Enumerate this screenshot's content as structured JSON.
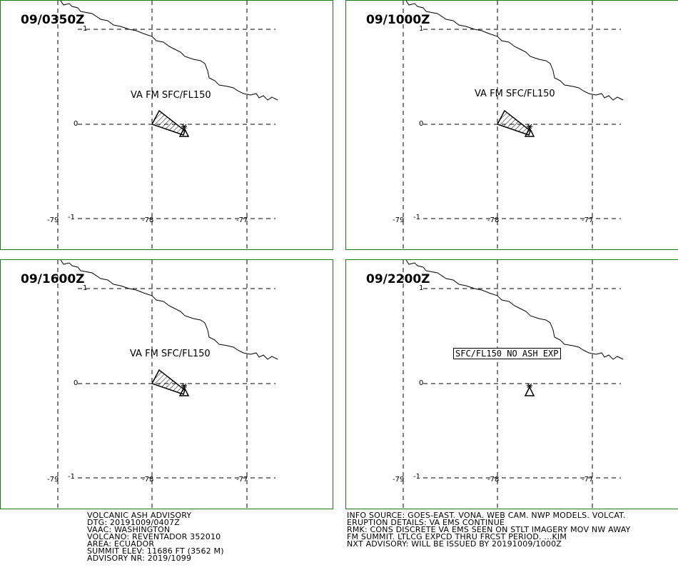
{
  "panels": [
    {
      "time": "09/0350Z",
      "label": "VA FM SFC/FL150",
      "ash": true
    },
    {
      "time": "09/1000Z",
      "label": "VA FM SFC/FL150",
      "ash": true
    },
    {
      "time": "09/1600Z",
      "label": "VA FM SFC/FL150",
      "ash": true
    },
    {
      "time": "09/2200Z",
      "label": "SFC/FL150 NO ASH EXP",
      "ash": false
    }
  ],
  "axes": {
    "lon_labels": [
      "-79",
      "-78",
      "-77"
    ],
    "lat_labels": [
      "1",
      "0",
      "-1"
    ]
  },
  "advisory": {
    "lines": [
      "VOLCANIC ASH ADVISORY",
      "DTG: 20191009/0407Z",
      "VAAC: WASHINGTON",
      "VOLCANO: REVENTADOR 352010",
      "AREA: ECUADOR",
      "SUMMIT ELEV: 11686 FT (3562 M)",
      "ADVISORY NR: 2019/1099"
    ]
  },
  "info": {
    "lines": [
      "INFO SOURCE: GOES-EAST. VONA. WEB CAM. NWP MODELS. VOLCAT.",
      "ERUPTION DETAILS: VA EMS CONTINUE",
      "RMK: CONS DISCRETE VA EMS SEEN ON STLT IMAGERY MOV NW AWAY",
      "FM SUMMIT. LTLCG EXPCD THRU FRCST PERIOD. ...KIM",
      "NXT ADVISORY: WILL BE ISSUED BY 20191009/1000Z"
    ]
  },
  "colors": {
    "border": "#1a7a1a",
    "line": "#000000"
  }
}
